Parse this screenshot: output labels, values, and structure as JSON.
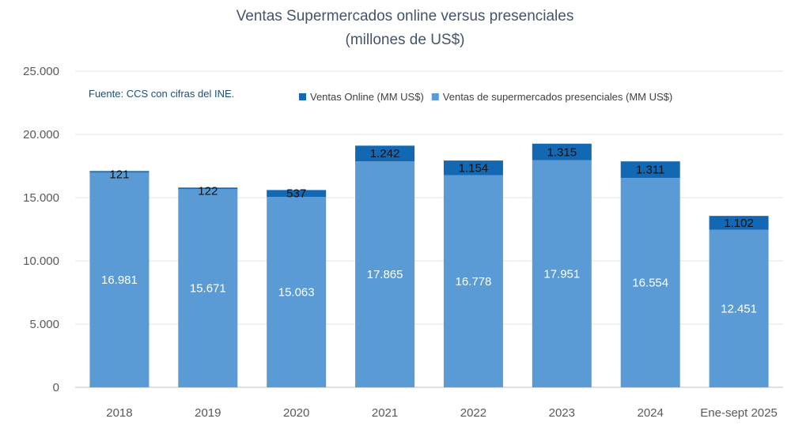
{
  "chart_data": {
    "type": "bar",
    "stacked": true,
    "title": "Ventas Supermercados online versus presenciales",
    "subtitle": "(millones de US$)",
    "source_note": "Fuente: CCS con cifras del INE.",
    "categories": [
      "2018",
      "2019",
      "2020",
      "2021",
      "2022",
      "2023",
      "2024",
      "Ene-sept 2025"
    ],
    "series": [
      {
        "name": "Ventas de supermercados presenciales (MM US$)",
        "color": "#5b9bd5",
        "values": [
          16981,
          15671,
          15063,
          17865,
          16778,
          17951,
          16554,
          12451
        ],
        "labels": [
          "16.981",
          "15.671",
          "15.063",
          "17.865",
          "16.778",
          "17.951",
          "16.554",
          "12.451"
        ]
      },
      {
        "name": "Ventas Online (MM US$)",
        "color": "#1268b3",
        "values": [
          121,
          122,
          537,
          1242,
          1154,
          1315,
          1311,
          1102
        ],
        "labels": [
          "121",
          "122",
          "537",
          "1.242",
          "1.154",
          "1.315",
          "1.311",
          "1.102"
        ]
      }
    ],
    "legend_order": [
      1,
      0
    ],
    "legend_position": "top",
    "ylim": [
      0,
      25000
    ],
    "yticks": [
      0,
      5000,
      10000,
      15000,
      20000,
      25000
    ],
    "ytick_labels": [
      "0",
      "5.000",
      "10.000",
      "15.000",
      "20.000",
      "25.000"
    ],
    "grid": true,
    "xlabel": "",
    "ylabel": ""
  }
}
